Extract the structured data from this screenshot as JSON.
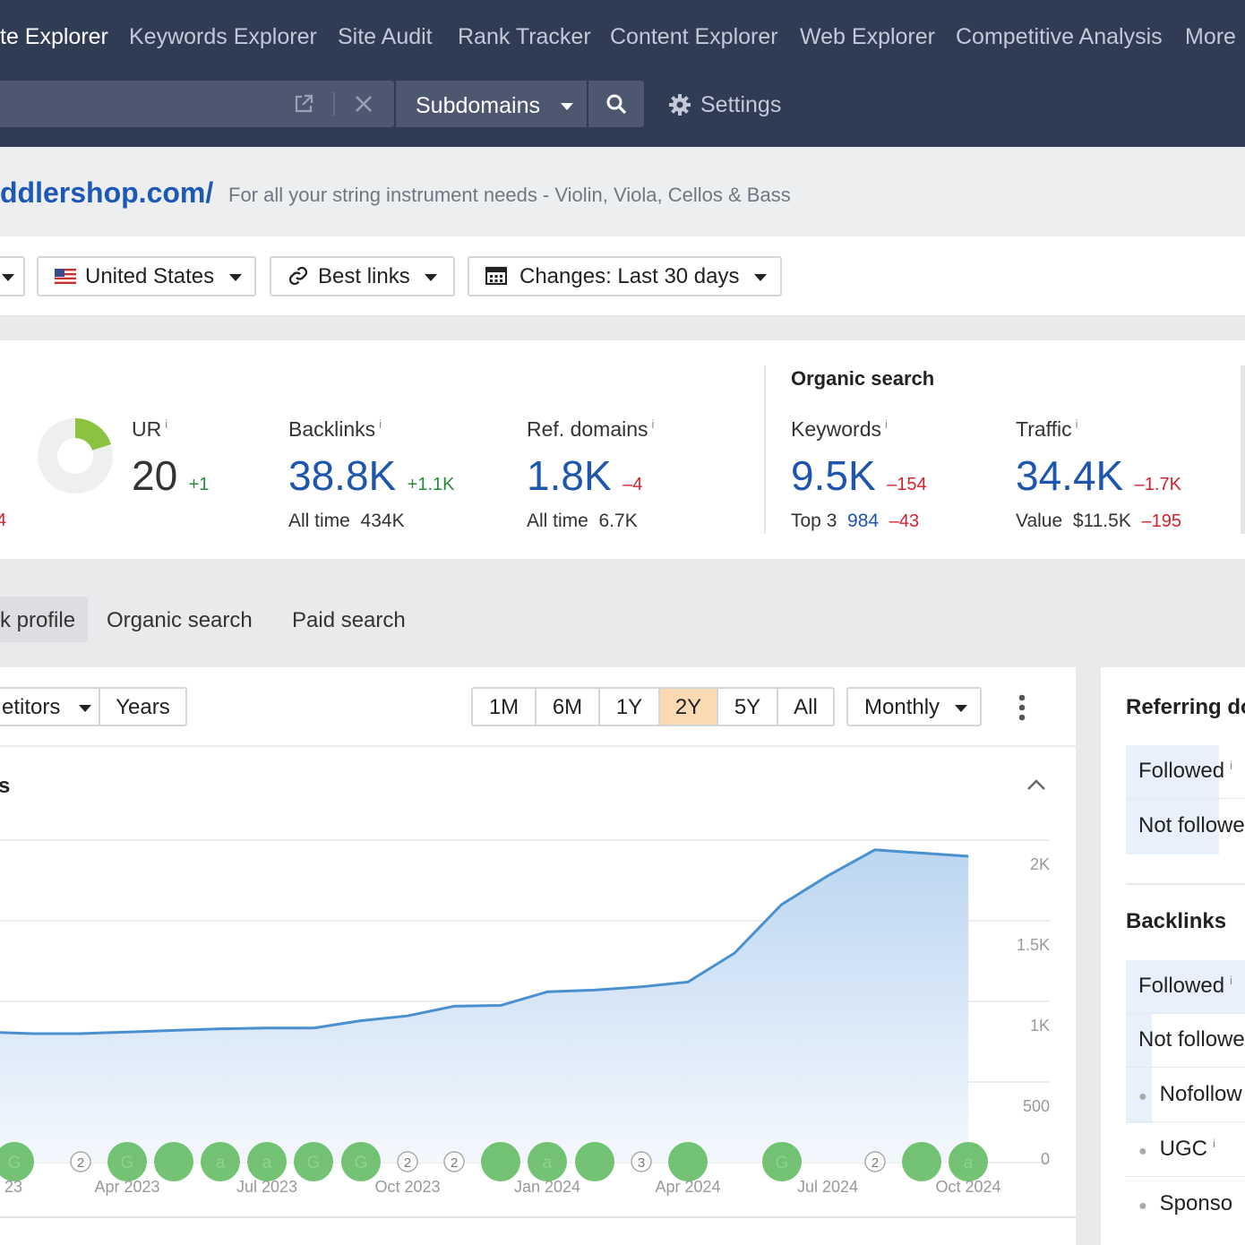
{
  "nav": {
    "items": [
      "te Explorer",
      "Keywords Explorer",
      "Site Audit",
      "Rank Tracker",
      "Content Explorer",
      "Web Explorer",
      "Competitive Analysis",
      "More"
    ],
    "subdomains_label": "Subdomains",
    "settings_label": "Settings"
  },
  "site": {
    "url": "ddlershop.com/",
    "description": "For all your string instrument needs - Violin, Viola, Cellos & Bass"
  },
  "filters": {
    "country": "United States",
    "links": "Best links",
    "changes": "Changes: Last 30 days"
  },
  "metrics": {
    "ur": {
      "label": "UR",
      "value": "20",
      "delta": "+1",
      "info": "i",
      "ring_fill": 0.2
    },
    "left_edge_delta": "4",
    "backlinks": {
      "label": "Backlinks",
      "value": "38.8K",
      "delta": "+1.1K",
      "sub_label": "All time",
      "sub_value": "434K",
      "info": "i"
    },
    "ref_domains": {
      "label": "Ref. domains",
      "value": "1.8K",
      "delta": "–4",
      "sub_label": "All time",
      "sub_value": "6.7K",
      "info": "i"
    },
    "organic_heading": "Organic search",
    "keywords": {
      "label": "Keywords",
      "value": "9.5K",
      "delta": "–154",
      "sub_label": "Top 3",
      "sub_value": "984",
      "sub_delta": "–43",
      "info": "i"
    },
    "traffic": {
      "label": "Traffic",
      "value": "34.4K",
      "delta": "–1.7K",
      "sub_label": "Value",
      "sub_value": "$11.5K",
      "sub_delta": "–195",
      "info": "i"
    }
  },
  "tabs": [
    "k profile",
    "Organic search",
    "Paid search"
  ],
  "toolbar": {
    "competitors": "etitors",
    "years": "Years",
    "ranges": [
      "1M",
      "6M",
      "1Y",
      "2Y",
      "5Y",
      "All"
    ],
    "active_range": "2Y",
    "interval": "Monthly"
  },
  "chart_section_title": "s",
  "chart_data": {
    "type": "area",
    "title": "",
    "x": [
      "Feb 2023",
      "Mar 2023",
      "Apr 2023",
      "May 2023",
      "Jun 2023",
      "Jul 2023",
      "Aug 2023",
      "Sep 2023",
      "Oct 2023",
      "Nov 2023",
      "Dec 2023",
      "Jan 2024",
      "Feb 2024",
      "Mar 2024",
      "Apr 2024",
      "May 2024",
      "Jun 2024",
      "Jul 2024",
      "Aug 2024",
      "Sep 2024",
      "Oct 2024",
      "Nov 2024"
    ],
    "series": [
      {
        "values": [
          810,
          800,
          800,
          810,
          820,
          830,
          835,
          835,
          880,
          910,
          970,
          975,
          1060,
          1070,
          1090,
          1120,
          1300,
          1600,
          1780,
          1940,
          1920,
          1900
        ]
      }
    ],
    "x_tick_labels": [
      "23",
      "Apr 2023",
      "Jul 2023",
      "Oct 2023",
      "Jan 2024",
      "Apr 2024",
      "Jul 2024",
      "Oct 2024"
    ],
    "y_tick_labels": [
      "0",
      "500",
      "1K",
      "1.5K",
      "2K"
    ],
    "ylim": [
      0,
      2000
    ],
    "grid": true,
    "color": "#4a90d0"
  },
  "annotations": [
    "G",
    "2",
    "G",
    "",
    "a",
    "a",
    "G",
    "G",
    "2",
    "2",
    "",
    "a",
    "",
    "3",
    "",
    "G",
    "2",
    "",
    "a"
  ],
  "side": {
    "ref_title": "Referring do",
    "ref_rows": [
      {
        "label": "Followed",
        "info": "i"
      },
      {
        "label": "Not followe",
        "info": ""
      }
    ],
    "backlinks_title": "Backlinks",
    "bl_rows": [
      {
        "label": "Followed",
        "info": "i"
      },
      {
        "label": "Not followe",
        "info": ""
      }
    ],
    "bl_sub": [
      {
        "label": "Nofollow",
        "info": ""
      },
      {
        "label": "UGC",
        "info": "i"
      },
      {
        "label": "Sponso",
        "info": ""
      }
    ]
  }
}
